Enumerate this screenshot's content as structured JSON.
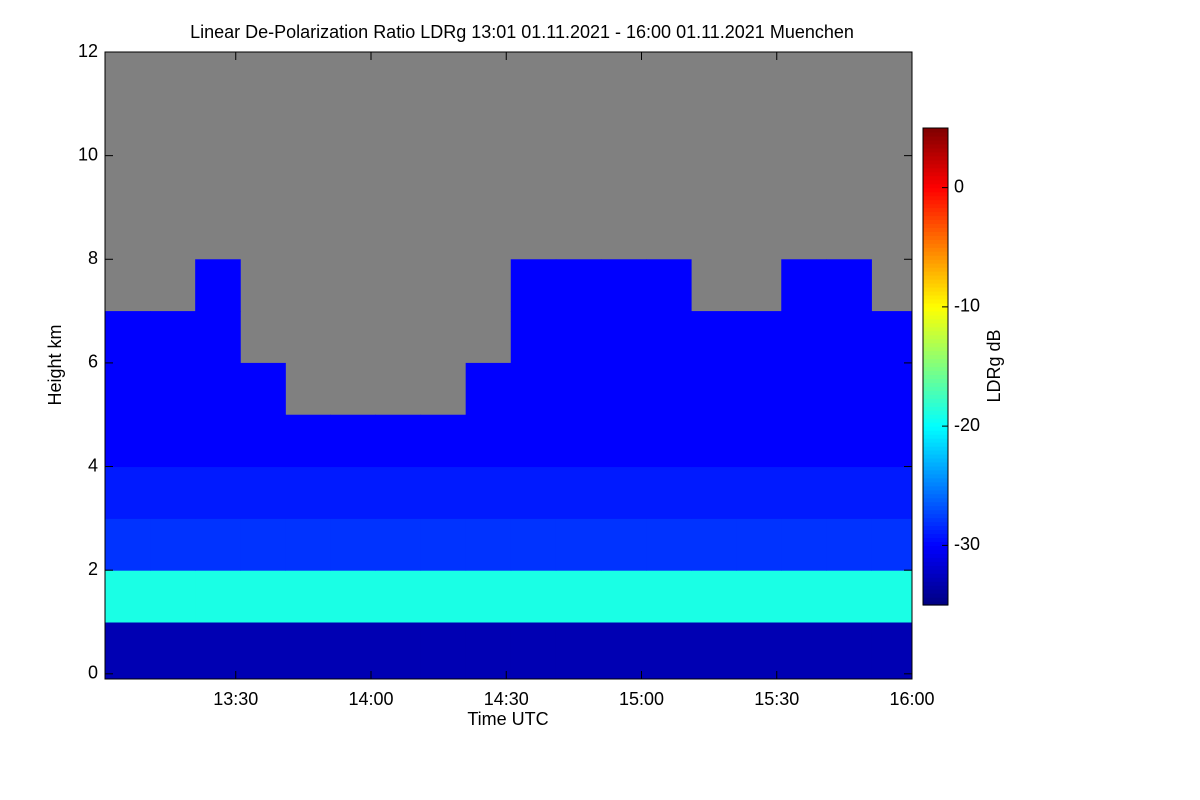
{
  "chart_data": {
    "type": "heatmap",
    "title": "Linear De-Polarization Ratio LDRg   13:01 01.11.2021 - 16:00 01.11.2021 Muenchen",
    "xlabel": "Time UTC",
    "ylabel": "Height km",
    "colorbar_label": "LDRg dB",
    "colormap": "jet",
    "missing_color": "#808080",
    "x": [
      781,
      791,
      801,
      811,
      821,
      831,
      841,
      851,
      861,
      871,
      881,
      891,
      901,
      911,
      921,
      931,
      941,
      951
    ],
    "y": [
      0,
      1,
      2,
      3,
      4,
      5,
      6,
      7,
      8,
      9,
      10,
      11
    ],
    "z": [
      [
        -33,
        -33,
        -33,
        -33,
        -33,
        -33,
        -33,
        -33,
        -33,
        -33,
        -33,
        -33,
        -33,
        -33,
        -33,
        -33,
        -33,
        -33
      ],
      [
        -19,
        -19,
        -19,
        -19,
        -19,
        -19,
        -19,
        -19,
        -19,
        -19,
        -19,
        -19,
        -19,
        -19,
        -19,
        -19,
        -19,
        -19
      ],
      [
        -28,
        -28,
        -28,
        -28,
        -28,
        -28,
        -28,
        -28,
        -28,
        -28,
        -28,
        -28,
        -28,
        -28,
        -28,
        -28,
        -28,
        -28
      ],
      [
        -29,
        -29,
        -29,
        -29,
        -29,
        -29,
        -29,
        -29,
        -29,
        -29,
        -29,
        -29,
        -29,
        -29,
        -29,
        -29,
        -29,
        -29
      ],
      [
        -30,
        -30,
        -30,
        -30,
        -30,
        -30,
        -30,
        -30,
        -30,
        -30,
        -30,
        -30,
        -30,
        -30,
        -30,
        -30,
        -30,
        -30
      ],
      [
        -30,
        -30,
        -30,
        -30,
        null,
        null,
        null,
        null,
        -30,
        -30,
        -30,
        -30,
        -30,
        -30,
        -30,
        -30,
        -30,
        -30
      ],
      [
        -30,
        -30,
        -30,
        null,
        null,
        null,
        null,
        null,
        null,
        -30,
        -30,
        -30,
        -30,
        -30,
        -30,
        -30,
        -30,
        -30
      ],
      [
        null,
        null,
        -30,
        null,
        null,
        null,
        null,
        null,
        null,
        -30,
        -30,
        -30,
        -30,
        null,
        null,
        -30,
        -30,
        null
      ],
      [
        null,
        null,
        null,
        null,
        null,
        null,
        null,
        null,
        null,
        null,
        null,
        null,
        null,
        null,
        null,
        null,
        null,
        null
      ],
      [
        null,
        null,
        null,
        null,
        null,
        null,
        null,
        null,
        null,
        null,
        null,
        null,
        null,
        null,
        null,
        null,
        null,
        null
      ],
      [
        null,
        null,
        null,
        null,
        null,
        null,
        null,
        null,
        null,
        null,
        null,
        null,
        null,
        null,
        null,
        null,
        null,
        null
      ],
      [
        null,
        null,
        null,
        null,
        null,
        null,
        null,
        null,
        null,
        null,
        null,
        null,
        null,
        null,
        null,
        null,
        null,
        null
      ]
    ],
    "xlim": [
      781,
      960
    ],
    "xticks": [
      {
        "value": 810,
        "label": "13:30"
      },
      {
        "value": 840,
        "label": "14:00"
      },
      {
        "value": 870,
        "label": "14:30"
      },
      {
        "value": 900,
        "label": "15:00"
      },
      {
        "value": 930,
        "label": "15:30"
      },
      {
        "value": 960,
        "label": "16:00"
      }
    ],
    "ylim": [
      -0.1,
      12
    ],
    "yticks": [
      0,
      2,
      4,
      6,
      8,
      10,
      12
    ],
    "zlim": [
      -35,
      5
    ],
    "zticks": [
      0,
      -10,
      -20,
      -30
    ]
  }
}
